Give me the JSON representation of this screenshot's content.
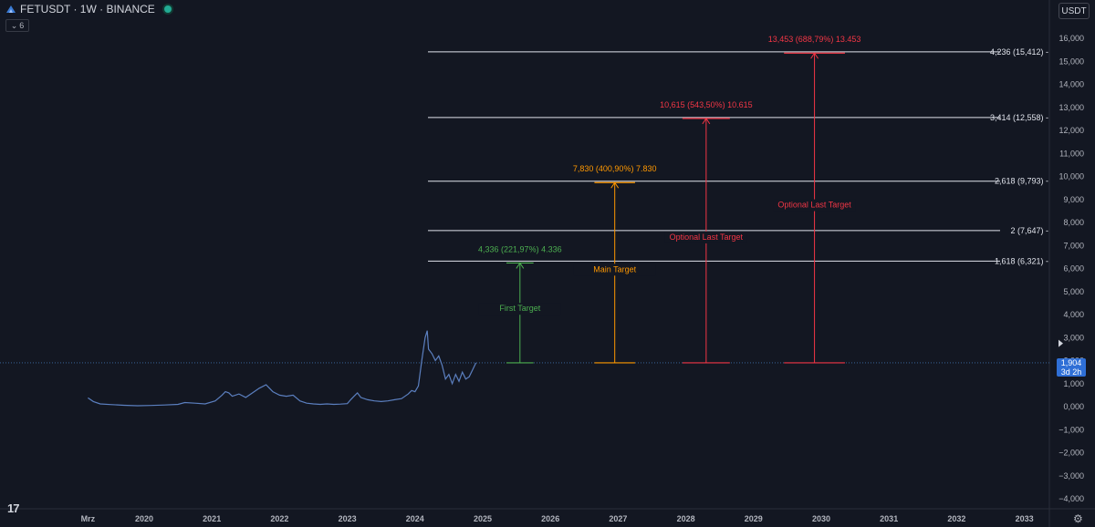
{
  "header": {
    "symbol": "FETUSDT · 1W · BINANCE",
    "indicator_count": "6",
    "currency": "USDT"
  },
  "price_tag": {
    "price": "1,904",
    "countdown": "3d 2h"
  },
  "chart_data": {
    "type": "line",
    "title": "FETUSDT · 1W · BINANCE",
    "ylim": [
      -4000,
      16000
    ],
    "y_ticks": [
      {
        "v": 16000,
        "label": "16,000"
      },
      {
        "v": 15000,
        "label": "15,000"
      },
      {
        "v": 14000,
        "label": "14,000"
      },
      {
        "v": 13000,
        "label": "13,000"
      },
      {
        "v": 12000,
        "label": "12,000"
      },
      {
        "v": 11000,
        "label": "11,000"
      },
      {
        "v": 10000,
        "label": "10,000"
      },
      {
        "v": 9000,
        "label": "9,000"
      },
      {
        "v": 8000,
        "label": "8,000"
      },
      {
        "v": 7000,
        "label": "7,000"
      },
      {
        "v": 6000,
        "label": "6,000"
      },
      {
        "v": 5000,
        "label": "5,000"
      },
      {
        "v": 4000,
        "label": "4,000"
      },
      {
        "v": 3000,
        "label": "3,000"
      },
      {
        "v": 2000,
        "label": "2,000"
      },
      {
        "v": 1000,
        "label": "1,000"
      },
      {
        "v": 0,
        "label": "0,000"
      },
      {
        "v": -1000,
        "label": "−1,000"
      },
      {
        "v": -2000,
        "label": "−2,000"
      },
      {
        "v": -3000,
        "label": "−3,000"
      },
      {
        "v": -4000,
        "label": "−4,000"
      }
    ],
    "x_ticks": [
      {
        "t": 2019.17,
        "label": "Mrz"
      },
      {
        "t": 2020,
        "label": "2020"
      },
      {
        "t": 2021,
        "label": "2021"
      },
      {
        "t": 2022,
        "label": "2022"
      },
      {
        "t": 2023,
        "label": "2023"
      },
      {
        "t": 2024,
        "label": "2024"
      },
      {
        "t": 2025,
        "label": "2025"
      },
      {
        "t": 2026,
        "label": "2026"
      },
      {
        "t": 2027,
        "label": "2027"
      },
      {
        "t": 2028,
        "label": "2028"
      },
      {
        "t": 2029,
        "label": "2029"
      },
      {
        "t": 2030,
        "label": "2030"
      },
      {
        "t": 2031,
        "label": "2031"
      },
      {
        "t": 2032,
        "label": "2032"
      },
      {
        "t": 2033,
        "label": "2033"
      }
    ],
    "current_price": 1904,
    "series": [
      {
        "x": [
          2019.17,
          2019.25,
          2019.35,
          2019.5,
          2019.7,
          2019.9,
          2020.1,
          2020.3,
          2020.5,
          2020.6,
          2020.75,
          2020.9,
          2021.05,
          2021.15,
          2021.2,
          2021.25,
          2021.3,
          2021.4,
          2021.5,
          2021.6,
          2021.7,
          2021.8,
          2021.9,
          2022.0,
          2022.1,
          2022.2,
          2022.3,
          2022.4,
          2022.5,
          2022.6,
          2022.7,
          2022.8,
          2022.9,
          2023.0,
          2023.05,
          2023.1,
          2023.15,
          2023.2,
          2023.3,
          2023.4,
          2023.5,
          2023.6,
          2023.7,
          2023.8,
          2023.9,
          2023.95,
          2024.0,
          2024.05,
          2024.1,
          2024.15,
          2024.18,
          2024.2,
          2024.25,
          2024.3,
          2024.35,
          2024.4,
          2024.45,
          2024.5,
          2024.55,
          2024.6,
          2024.65,
          2024.7,
          2024.75,
          2024.8,
          2024.85,
          2024.9
        ],
        "y": [
          380,
          220,
          120,
          90,
          60,
          40,
          50,
          70,
          100,
          180,
          150,
          120,
          250,
          500,
          650,
          600,
          450,
          550,
          400,
          600,
          800,
          950,
          650,
          500,
          450,
          500,
          250,
          150,
          120,
          100,
          120,
          100,
          110,
          130,
          300,
          450,
          600,
          400,
          300,
          250,
          220,
          250,
          300,
          350,
          550,
          700,
          650,
          900,
          2000,
          3000,
          3300,
          2500,
          2300,
          2000,
          2200,
          1800,
          1200,
          1400,
          1000,
          1400,
          1100,
          1500,
          1200,
          1300,
          1600,
          1904
        ]
      }
    ],
    "fib_levels": [
      {
        "value": 6321,
        "label": "1,618 (6,321) -"
      },
      {
        "value": 7647,
        "label": "2 (7,647) -"
      },
      {
        "value": 9793,
        "label": "2,618 (9,793) -"
      },
      {
        "value": 12558,
        "label": "3,414 (12,558) -"
      },
      {
        "value": 15412,
        "label": "4,236 (15,412) -"
      }
    ],
    "targets": [
      {
        "x_start": 2025.35,
        "x_end": 2025.75,
        "from": 1904,
        "to": 6240,
        "color": "#4caf50",
        "top_label": "4,336 (221,97%) 4.336",
        "mid_label": "First Target",
        "mid_value": 4150
      },
      {
        "x_start": 2026.65,
        "x_end": 2027.25,
        "from": 1904,
        "to": 9734,
        "color": "#ff9800",
        "top_label": "7,830 (400,90%) 7.830",
        "mid_label": "Main Target",
        "mid_value": 5850
      },
      {
        "x_start": 2027.95,
        "x_end": 2028.65,
        "from": 1904,
        "to": 12519,
        "color": "#f23645",
        "top_label": "10,615 (543,50%) 10.615",
        "mid_label": "Optional Last Target",
        "mid_value": 7250
      },
      {
        "x_start": 2029.45,
        "x_end": 2030.35,
        "from": 1904,
        "to": 15357,
        "color": "#f23645",
        "top_label": "13,453 (688,79%) 13.453",
        "mid_label": "Optional Last Target",
        "mid_value": 8650
      }
    ]
  }
}
